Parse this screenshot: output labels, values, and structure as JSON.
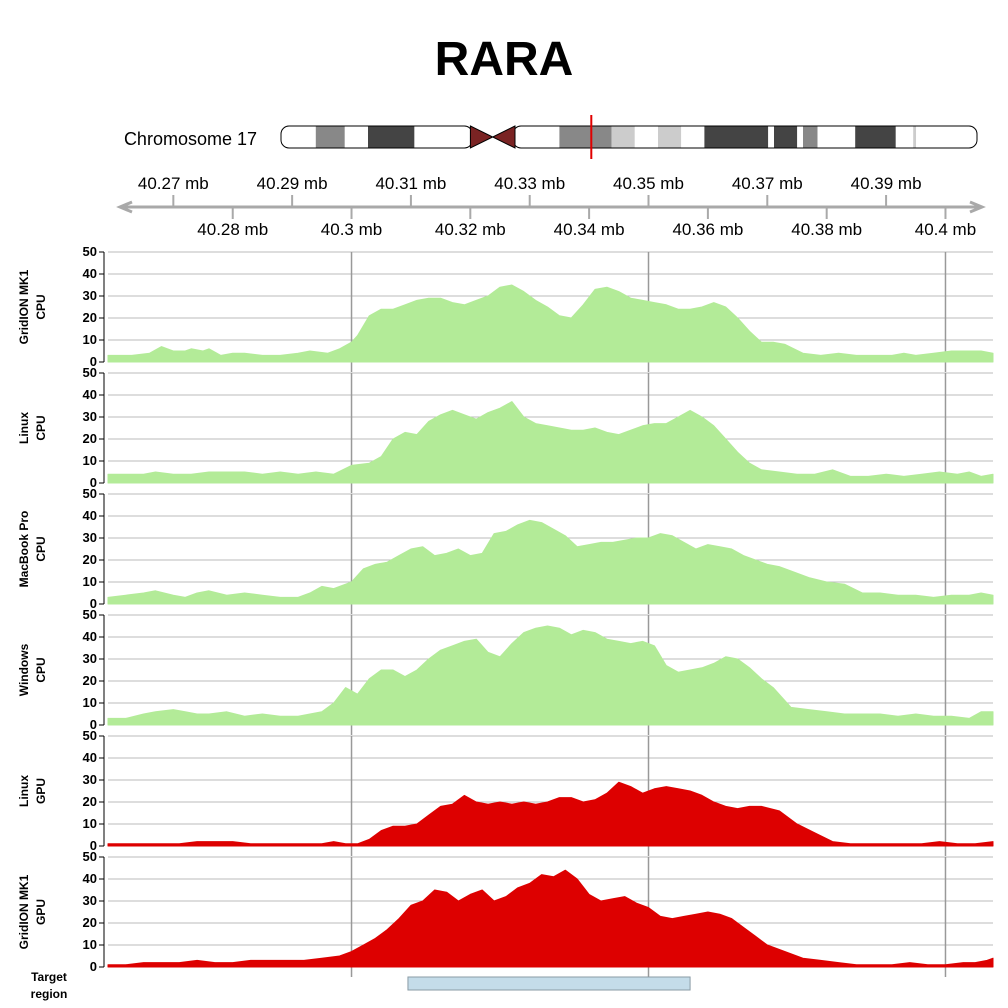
{
  "title": "RARA",
  "ideogram": {
    "label": "Chromosome 17",
    "bands": [
      {
        "start": 40.26,
        "end": 40.266,
        "color": "#ffffff"
      },
      {
        "start": 40.266,
        "end": 40.271,
        "color": "#888888"
      },
      {
        "start": 40.271,
        "end": 40.275,
        "color": "#ffffff"
      },
      {
        "start": 40.275,
        "end": 40.283,
        "color": "#444444"
      },
      {
        "start": 40.283,
        "end": 40.293,
        "color": "#ffffff"
      },
      {
        "start": 40.3,
        "end": 40.308,
        "color": "#ffffff"
      },
      {
        "start": 40.308,
        "end": 40.317,
        "color": "#888888"
      },
      {
        "start": 40.317,
        "end": 40.321,
        "color": "#cccccc"
      },
      {
        "start": 40.321,
        "end": 40.325,
        "color": "#ffffff"
      },
      {
        "start": 40.325,
        "end": 40.329,
        "color": "#cccccc"
      },
      {
        "start": 40.329,
        "end": 40.333,
        "color": "#ffffff"
      },
      {
        "start": 40.333,
        "end": 40.344,
        "color": "#444444"
      },
      {
        "start": 40.344,
        "end": 40.345,
        "color": "#ffffff"
      },
      {
        "start": 40.345,
        "end": 40.349,
        "color": "#444444"
      },
      {
        "start": 40.349,
        "end": 40.35,
        "color": "#ffffff"
      },
      {
        "start": 40.35,
        "end": 40.3525,
        "color": "#888888"
      },
      {
        "start": 40.3525,
        "end": 40.359,
        "color": "#ffffff"
      },
      {
        "start": 40.359,
        "end": 40.366,
        "color": "#444444"
      },
      {
        "start": 40.366,
        "end": 40.369,
        "color": "#ffffff"
      },
      {
        "start": 40.369,
        "end": 40.3695,
        "color": "#cccccc"
      },
      {
        "start": 40.3695,
        "end": 40.38,
        "color": "#ffffff"
      }
    ],
    "centromere": [
      40.293,
      40.3
    ],
    "marker": 40.3135
  },
  "axis": {
    "range": [
      40.259,
      40.408
    ],
    "top_ticks": [
      {
        "value": 40.27,
        "label": "40.27 mb"
      },
      {
        "value": 40.29,
        "label": "40.29 mb"
      },
      {
        "value": 40.31,
        "label": "40.31 mb"
      },
      {
        "value": 40.33,
        "label": "40.33 mb"
      },
      {
        "value": 40.35,
        "label": "40.35 mb"
      },
      {
        "value": 40.37,
        "label": "40.37 mb"
      },
      {
        "value": 40.39,
        "label": "40.39 mb"
      }
    ],
    "bottom_ticks": [
      {
        "value": 40.28,
        "label": "40.28 mb"
      },
      {
        "value": 40.3,
        "label": "40.3 mb"
      },
      {
        "value": 40.32,
        "label": "40.32 mb"
      },
      {
        "value": 40.34,
        "label": "40.34 mb"
      },
      {
        "value": 40.36,
        "label": "40.36 mb"
      },
      {
        "value": 40.38,
        "label": "40.38 mb"
      },
      {
        "value": 40.4,
        "label": "40.4 mb"
      }
    ],
    "vlines": [
      40.3,
      40.35,
      40.4
    ]
  },
  "chart_data": {
    "type": "area",
    "ylim": [
      0,
      50
    ],
    "yticks": [
      0,
      10,
      20,
      30,
      40,
      50
    ],
    "x_range": [
      40.259,
      40.408
    ],
    "series": [
      {
        "name": "GridION MK1 CPU",
        "label_lines": [
          "GridION MK1",
          "CPU"
        ],
        "color": "#b3eb98",
        "x": [
          40.259,
          40.261,
          40.263,
          40.266,
          40.268,
          40.27,
          40.272,
          40.273,
          40.275,
          40.276,
          40.278,
          40.28,
          40.282,
          40.285,
          40.288,
          40.291,
          40.293,
          40.296,
          40.298,
          40.3,
          40.301,
          40.303,
          40.305,
          40.307,
          40.309,
          40.311,
          40.313,
          40.315,
          40.317,
          40.319,
          40.321,
          40.323,
          40.325,
          40.327,
          40.329,
          40.331,
          40.333,
          40.335,
          40.337,
          40.339,
          40.341,
          40.343,
          40.345,
          40.347,
          40.349,
          40.351,
          40.353,
          40.355,
          40.357,
          40.359,
          40.361,
          40.363,
          40.365,
          40.367,
          40.369,
          40.371,
          40.373,
          40.376,
          40.379,
          40.382,
          40.385,
          40.388,
          40.391,
          40.393,
          40.395,
          40.398,
          40.401,
          40.404,
          40.406,
          40.408
        ],
        "values": [
          3,
          3,
          3,
          4,
          7,
          5,
          5,
          6,
          5,
          6,
          3,
          4,
          4,
          3,
          3,
          4,
          5,
          4,
          6,
          9,
          12,
          21,
          24,
          24,
          26,
          28,
          29,
          29,
          27,
          26,
          28,
          30,
          34,
          35,
          32,
          28,
          25,
          21,
          20,
          26,
          33,
          34,
          32,
          29,
          28,
          27,
          26,
          24,
          24,
          25,
          27,
          25,
          20,
          14,
          9,
          9,
          8,
          4,
          3,
          4,
          3,
          3,
          3,
          4,
          3,
          4,
          5,
          5,
          5,
          4
        ]
      },
      {
        "name": "Linux CPU",
        "label_lines": [
          "Linux",
          "CPU"
        ],
        "color": "#b3eb98",
        "x": [
          40.259,
          40.262,
          40.265,
          40.267,
          40.27,
          40.273,
          40.276,
          40.279,
          40.282,
          40.285,
          40.288,
          40.291,
          40.294,
          40.297,
          40.3,
          40.303,
          40.305,
          40.307,
          40.309,
          40.311,
          40.313,
          40.315,
          40.317,
          40.319,
          40.321,
          40.323,
          40.325,
          40.327,
          40.329,
          40.331,
          40.333,
          40.335,
          40.337,
          40.339,
          40.341,
          40.343,
          40.345,
          40.347,
          40.349,
          40.351,
          40.353,
          40.355,
          40.357,
          40.359,
          40.361,
          40.363,
          40.365,
          40.367,
          40.369,
          40.372,
          40.375,
          40.378,
          40.381,
          40.384,
          40.387,
          40.39,
          40.393,
          40.396,
          40.399,
          40.402,
          40.404,
          40.406,
          40.408
        ],
        "values": [
          4,
          4,
          4,
          5,
          4,
          4,
          5,
          5,
          5,
          4,
          5,
          4,
          5,
          4,
          8,
          9,
          12,
          20,
          23,
          22,
          28,
          31,
          33,
          31,
          29,
          32,
          34,
          37,
          30,
          27,
          26,
          25,
          24,
          24,
          25,
          23,
          22,
          24,
          26,
          27,
          27,
          30,
          33,
          30,
          26,
          20,
          14,
          9,
          6,
          5,
          4,
          4,
          6,
          3,
          3,
          4,
          3,
          4,
          5,
          4,
          5,
          3,
          4
        ]
      },
      {
        "name": "MacBook Pro CPU",
        "label_lines": [
          "MacBook Pro",
          "CPU"
        ],
        "color": "#b3eb98",
        "x": [
          40.259,
          40.262,
          40.265,
          40.267,
          40.27,
          40.272,
          40.274,
          40.276,
          40.279,
          40.282,
          40.285,
          40.288,
          40.291,
          40.293,
          40.295,
          40.297,
          40.3,
          40.302,
          40.304,
          40.306,
          40.308,
          40.31,
          40.312,
          40.314,
          40.316,
          40.318,
          40.32,
          40.322,
          40.324,
          40.326,
          40.328,
          40.33,
          40.332,
          40.334,
          40.336,
          40.338,
          40.34,
          40.342,
          40.344,
          40.346,
          40.348,
          40.35,
          40.352,
          40.354,
          40.356,
          40.358,
          40.36,
          40.362,
          40.364,
          40.366,
          40.368,
          40.37,
          40.372,
          40.374,
          40.377,
          40.38,
          40.383,
          40.386,
          40.389,
          40.392,
          40.395,
          40.398,
          40.401,
          40.404,
          40.406,
          40.408
        ],
        "values": [
          3,
          4,
          5,
          6,
          4,
          3,
          5,
          6,
          4,
          5,
          4,
          3,
          3,
          5,
          8,
          7,
          10,
          16,
          18,
          19,
          22,
          25,
          26,
          22,
          23,
          25,
          22,
          23,
          32,
          33,
          36,
          38,
          37,
          34,
          31,
          26,
          27,
          28,
          28,
          29,
          30,
          30,
          32,
          31,
          28,
          25,
          27,
          26,
          25,
          22,
          20,
          18,
          17,
          15,
          12,
          10,
          9,
          5,
          5,
          4,
          4,
          3,
          4,
          4,
          5,
          4
        ]
      },
      {
        "name": "Windows CPU",
        "label_lines": [
          "Windows",
          "CPU"
        ],
        "color": "#b3eb98",
        "x": [
          40.259,
          40.262,
          40.265,
          40.267,
          40.27,
          40.272,
          40.274,
          40.276,
          40.279,
          40.282,
          40.285,
          40.288,
          40.291,
          40.293,
          40.295,
          40.297,
          40.299,
          40.301,
          40.303,
          40.305,
          40.307,
          40.309,
          40.311,
          40.313,
          40.315,
          40.317,
          40.319,
          40.321,
          40.323,
          40.325,
          40.327,
          40.329,
          40.331,
          40.333,
          40.335,
          40.337,
          40.339,
          40.341,
          40.343,
          40.345,
          40.347,
          40.349,
          40.351,
          40.353,
          40.355,
          40.357,
          40.359,
          40.361,
          40.363,
          40.365,
          40.367,
          40.369,
          40.371,
          40.374,
          40.377,
          40.38,
          40.383,
          40.386,
          40.389,
          40.392,
          40.395,
          40.398,
          40.401,
          40.404,
          40.406,
          40.408
        ],
        "values": [
          3,
          3,
          5,
          6,
          7,
          6,
          5,
          5,
          6,
          4,
          5,
          4,
          4,
          5,
          6,
          10,
          17,
          14,
          21,
          25,
          25,
          22,
          25,
          30,
          34,
          36,
          38,
          39,
          33,
          31,
          37,
          42,
          44,
          45,
          44,
          41,
          43,
          42,
          39,
          38,
          37,
          38,
          36,
          27,
          24,
          25,
          26,
          28,
          31,
          30,
          26,
          21,
          17,
          8,
          7,
          6,
          5,
          5,
          5,
          4,
          5,
          4,
          4,
          3,
          6,
          6
        ]
      },
      {
        "name": "Linux GPU",
        "label_lines": [
          "Linux",
          "GPU"
        ],
        "color": "#dd0000",
        "x": [
          40.259,
          40.262,
          40.265,
          40.268,
          40.271,
          40.274,
          40.277,
          40.28,
          40.283,
          40.286,
          40.289,
          40.292,
          40.295,
          40.297,
          40.299,
          40.301,
          40.303,
          40.305,
          40.307,
          40.309,
          40.311,
          40.313,
          40.315,
          40.317,
          40.319,
          40.321,
          40.323,
          40.325,
          40.327,
          40.329,
          40.331,
          40.333,
          40.335,
          40.337,
          40.339,
          40.341,
          40.343,
          40.345,
          40.347,
          40.349,
          40.351,
          40.353,
          40.355,
          40.357,
          40.359,
          40.361,
          40.363,
          40.365,
          40.367,
          40.369,
          40.372,
          40.375,
          40.378,
          40.381,
          40.384,
          40.387,
          40.39,
          40.393,
          40.396,
          40.399,
          40.402,
          40.405,
          40.408
        ],
        "values": [
          1,
          1,
          1,
          1,
          1,
          2,
          2,
          2,
          1,
          1,
          1,
          1,
          1,
          2,
          1,
          1,
          3,
          7,
          9,
          9,
          10,
          14,
          18,
          19,
          23,
          20,
          19,
          20,
          19,
          20,
          19,
          20,
          22,
          22,
          20,
          21,
          24,
          29,
          27,
          24,
          26,
          27,
          26,
          25,
          23,
          20,
          18,
          17,
          18,
          18,
          16,
          10,
          6,
          2,
          1,
          1,
          1,
          1,
          1,
          2,
          1,
          1,
          2
        ]
      },
      {
        "name": "GridION MK1 GPU",
        "label_lines": [
          "GridION MK1",
          "GPU"
        ],
        "color": "#dd0000",
        "x": [
          40.259,
          40.262,
          40.265,
          40.268,
          40.271,
          40.274,
          40.277,
          40.28,
          40.283,
          40.286,
          40.289,
          40.292,
          40.295,
          40.298,
          40.3,
          40.302,
          40.304,
          40.306,
          40.308,
          40.31,
          40.312,
          40.314,
          40.316,
          40.318,
          40.32,
          40.322,
          40.324,
          40.326,
          40.328,
          40.33,
          40.332,
          40.334,
          40.336,
          40.338,
          40.34,
          40.342,
          40.344,
          40.346,
          40.348,
          40.35,
          40.352,
          40.354,
          40.356,
          40.358,
          40.36,
          40.362,
          40.364,
          40.366,
          40.368,
          40.37,
          40.373,
          40.376,
          40.379,
          40.382,
          40.385,
          40.388,
          40.391,
          40.394,
          40.397,
          40.4,
          40.403,
          40.405,
          40.407,
          40.408
        ],
        "values": [
          1,
          1,
          2,
          2,
          2,
          3,
          2,
          2,
          3,
          3,
          3,
          3,
          4,
          5,
          7,
          10,
          13,
          17,
          22,
          28,
          30,
          35,
          34,
          30,
          33,
          35,
          30,
          32,
          36,
          38,
          42,
          41,
          44,
          40,
          33,
          30,
          31,
          32,
          29,
          27,
          23,
          22,
          23,
          24,
          25,
          24,
          22,
          18,
          14,
          10,
          7,
          4,
          3,
          2,
          1,
          1,
          1,
          2,
          1,
          1,
          2,
          2,
          3,
          4
        ]
      }
    ]
  },
  "target": {
    "label_lines": [
      "Target",
      "region"
    ],
    "start": 40.3095,
    "end": 40.357
  }
}
